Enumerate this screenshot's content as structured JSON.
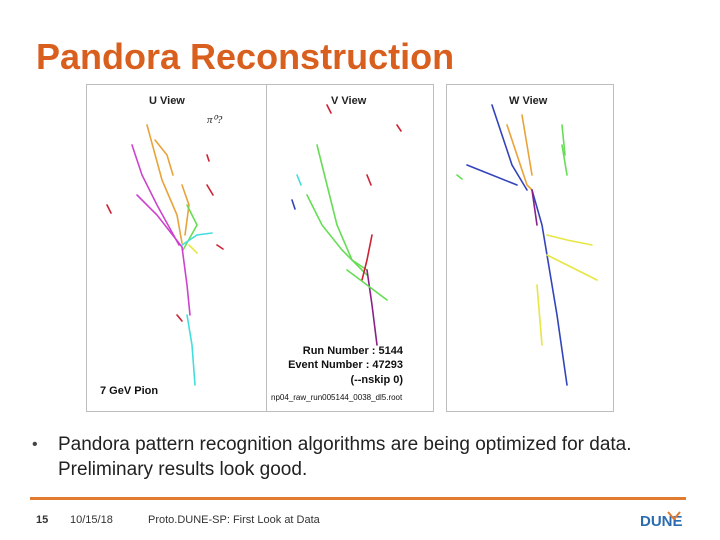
{
  "slide": {
    "title": "Pandora Reconstruction",
    "bullet": "Pandora pattern recognition algorithms are being optimized for data. Preliminary results look good.",
    "bullet_marker": "•"
  },
  "figure": {
    "views": [
      "U View",
      "V View",
      "W View"
    ],
    "pi0_label": "π⁰?",
    "particle_label": "7 GeV Pion",
    "run_number": "Run Number : 5144",
    "event_number": "Event Number : 47293",
    "nskip": "(--nskip 0)",
    "file_name": "np04_raw_run005144_0038_dl5.root",
    "track_colors": [
      "#e8a33a",
      "#cc44cc",
      "#44dddd",
      "#66dd55",
      "#cc2233",
      "#3344bb",
      "#e6e644",
      "#882288"
    ]
  },
  "footer": {
    "slide_number": "15",
    "date": "10/15/18",
    "title": "Proto.DUNE-SP: First Look at Data",
    "logo_text": "DUNE",
    "accent_color": "#e07b2f"
  }
}
